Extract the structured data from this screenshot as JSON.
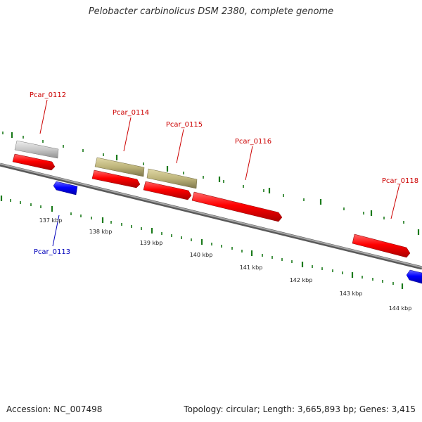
{
  "header": {
    "title": "Pelobacter carbinolicus DSM 2380, complete genome"
  },
  "footer": {
    "accession": "Accession: NC_007498",
    "summary": "Topology: circular; Length: 3,665,893 bp; Genes: 3,415"
  },
  "colors": {
    "forward_gene": "#ff0000",
    "reverse_gene": "#0000ff",
    "gray_feature": "#c8c8c8",
    "tan_feature": "#bdb47a",
    "backbone": "#808080",
    "tick": "#1a7a1a",
    "forward_label": "#cc0000",
    "reverse_label": "#0000bb"
  },
  "scale": {
    "labels": [
      "137 kbp",
      "138 kbp",
      "139 kbp",
      "140 kbp",
      "141 kbp",
      "142 kbp",
      "143 kbp",
      "144 kbp"
    ]
  },
  "genes": {
    "labels": [
      "Pcar_0112",
      "Pcar_0113",
      "Pcar_0114",
      "Pcar_0115",
      "Pcar_0116",
      "Pcar_0118"
    ]
  }
}
